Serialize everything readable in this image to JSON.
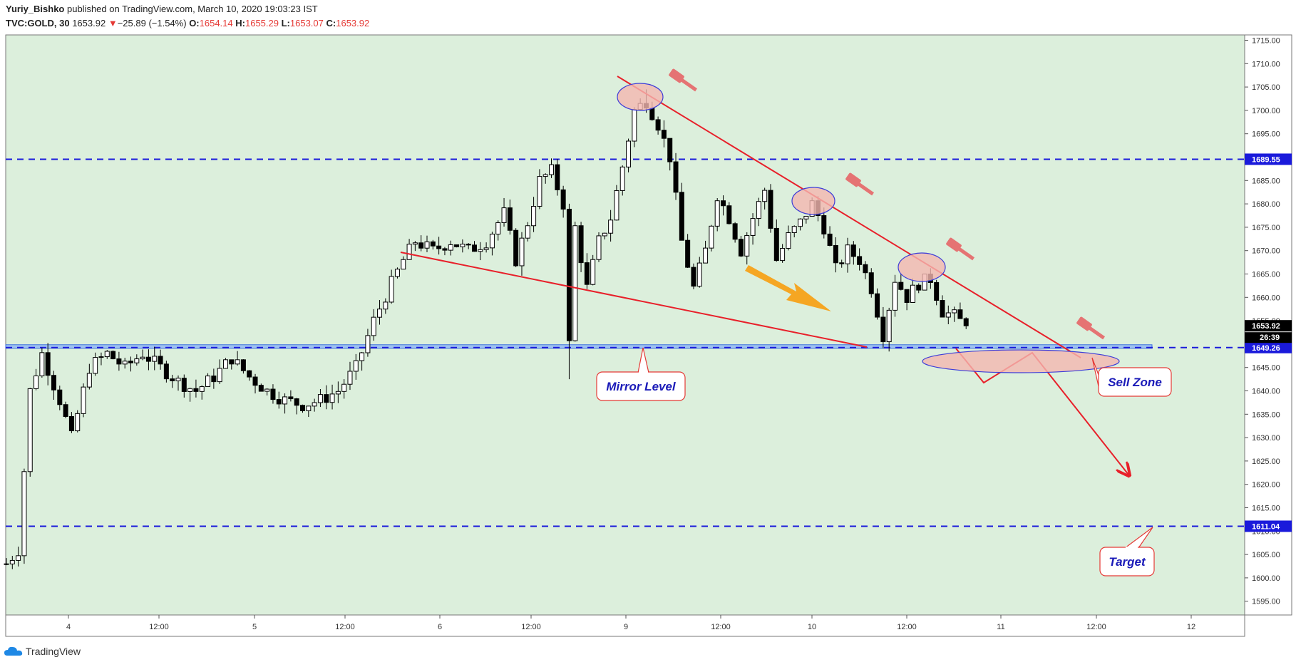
{
  "header": {
    "author": "Yuriy_Bishko",
    "published": " published on TradingView.com, March 10, 2020 19:03:23 IST",
    "symbol": "TVC:GOLD, 30",
    "last": "1653.92",
    "change_arrow": "▼",
    "change": "−25.89 (−1.54%)",
    "o_label": "O:",
    "o_value": "1654.14",
    "h_label": "H:",
    "h_value": "1655.29",
    "l_label": "L:",
    "l_value": "1653.07",
    "c_label": "C:",
    "c_value": "1653.92"
  },
  "footer": {
    "brand": "TradingView"
  },
  "colors": {
    "plot_bg": "#dcefdc",
    "candle": "#000000",
    "level_line": "#1a1adb",
    "trend_line": "#e8202a",
    "arrow_orange": "#f5a623",
    "ellipse_fill": "#f4b6b0",
    "ellipse_stroke": "#3d3dd8",
    "hammer": "#e57373",
    "label_text": "#1a1ab8",
    "label_border": "#e53935"
  },
  "chart_data": {
    "type": "candlestick",
    "title": "",
    "xlabel": "",
    "ylabel": "",
    "ylim": [
      1591,
      1718
    ],
    "grid": false,
    "x_ticks": [
      "4",
      "12:00",
      "5",
      "12:00",
      "6",
      "12:00",
      "9",
      "12:00",
      "10",
      "12:00",
      "11",
      "12:00",
      "12"
    ],
    "y_ticks": [
      "1715.00",
      "1710.00",
      "1705.00",
      "1700.00",
      "1695.00",
      "1690.00",
      "1685.00",
      "1680.00",
      "1675.00",
      "1670.00",
      "1665.00",
      "1660.00",
      "1655.00",
      "1650.00",
      "1645.00",
      "1640.00",
      "1635.00",
      "1630.00",
      "1625.00",
      "1620.00",
      "1615.00",
      "1610.00",
      "1605.00",
      "1600.00",
      "1595.00"
    ],
    "price_path": [
      [
        0,
        1603
      ],
      [
        2,
        1606
      ],
      [
        4,
        1640
      ],
      [
        6,
        1648
      ],
      [
        9,
        1638
      ],
      [
        11,
        1630
      ],
      [
        14,
        1645
      ],
      [
        17,
        1648
      ],
      [
        20,
        1645
      ],
      [
        23,
        1648
      ],
      [
        26,
        1645
      ],
      [
        29,
        1642
      ],
      [
        32,
        1640
      ],
      [
        35,
        1643
      ],
      [
        38,
        1647
      ],
      [
        41,
        1643
      ],
      [
        44,
        1640
      ],
      [
        47,
        1638
      ],
      [
        50,
        1637
      ],
      [
        53,
        1638
      ],
      [
        56,
        1640
      ],
      [
        59,
        1645
      ],
      [
        62,
        1655
      ],
      [
        65,
        1663
      ],
      [
        67,
        1668
      ],
      [
        69,
        1672
      ],
      [
        72,
        1670
      ],
      [
        75,
        1672
      ],
      [
        78,
        1670
      ],
      [
        81,
        1672
      ],
      [
        84,
        1678
      ],
      [
        86,
        1668
      ],
      [
        88,
        1676
      ],
      [
        90,
        1685
      ],
      [
        92,
        1687
      ],
      [
        94,
        1680
      ],
      [
        95,
        1650
      ],
      [
        96,
        1675
      ],
      [
        98,
        1662
      ],
      [
        100,
        1672
      ],
      [
        102,
        1677
      ],
      [
        104,
        1688
      ],
      [
        106,
        1700
      ],
      [
        108,
        1702
      ],
      [
        110,
        1697
      ],
      [
        112,
        1690
      ],
      [
        114,
        1672
      ],
      [
        116,
        1662
      ],
      [
        118,
        1670
      ],
      [
        120,
        1682
      ],
      [
        122,
        1677
      ],
      [
        124,
        1670
      ],
      [
        126,
        1677
      ],
      [
        128,
        1683
      ],
      [
        130,
        1668
      ],
      [
        132,
        1673
      ],
      [
        134,
        1676
      ],
      [
        136,
        1680
      ],
      [
        138,
        1675
      ],
      [
        140,
        1666
      ],
      [
        142,
        1670
      ],
      [
        144,
        1668
      ],
      [
        146,
        1662
      ],
      [
        148,
        1652
      ],
      [
        150,
        1664
      ],
      [
        152,
        1660
      ],
      [
        154,
        1663
      ],
      [
        156,
        1664
      ],
      [
        158,
        1657
      ],
      [
        160,
        1656
      ],
      [
        162,
        1653.92
      ]
    ],
    "horizontal_levels": [
      {
        "price": 1689.55,
        "label": "1689.55"
      },
      {
        "price": 1649.26,
        "label": "1649.26"
      },
      {
        "price": 1611.04,
        "label": "1611.04"
      }
    ],
    "last_price": {
      "price": 1653.92,
      "label": "1653.92"
    },
    "countdown": "26:39",
    "annotations": [
      {
        "name": "mirror-level",
        "text": "Mirror Level"
      },
      {
        "name": "sell-zone",
        "text": "Sell Zone"
      },
      {
        "name": "target",
        "text": "Target"
      }
    ]
  }
}
